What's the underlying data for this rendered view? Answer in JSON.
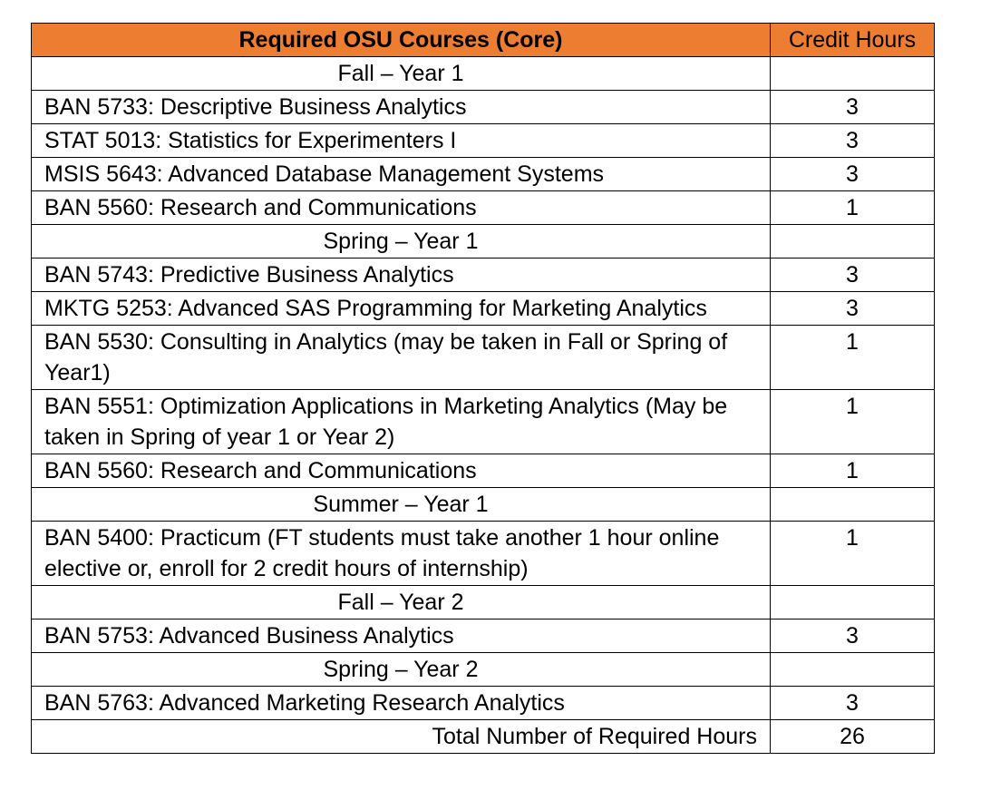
{
  "header": {
    "course_label": "Required OSU Courses (Core)",
    "credit_label": "Credit Hours",
    "header_color": "#ED7D31"
  },
  "rows": [
    {
      "type": "section",
      "label": "Fall – Year 1"
    },
    {
      "type": "course",
      "name": "BAN 5733: Descriptive Business Analytics",
      "credits": "3"
    },
    {
      "type": "course",
      "name": "STAT 5013: Statistics for Experimenters I",
      "credits": "3"
    },
    {
      "type": "course",
      "name": "MSIS 5643: Advanced Database Management Systems",
      "credits": "3"
    },
    {
      "type": "course",
      "name": "BAN 5560: Research and Communications",
      "credits": "1"
    },
    {
      "type": "section",
      "label": "Spring – Year 1"
    },
    {
      "type": "course",
      "name": "BAN 5743: Predictive Business Analytics",
      "credits": "3"
    },
    {
      "type": "course",
      "name": "MKTG 5253: Advanced SAS Programming for Marketing Analytics",
      "credits": "3"
    },
    {
      "type": "course",
      "name": "BAN 5530: Consulting in Analytics (may be taken in Fall or Spring of Year1)",
      "credits": "1"
    },
    {
      "type": "course",
      "name": "BAN 5551: Optimization Applications in Marketing Analytics (May be taken in Spring of year 1 or Year 2)",
      "credits": "1"
    },
    {
      "type": "course",
      "name": "BAN 5560: Research and Communications",
      "credits": "1"
    },
    {
      "type": "section",
      "label": "Summer – Year 1"
    },
    {
      "type": "course",
      "name": "BAN 5400: Practicum (FT students must take another 1 hour online elective or, enroll for 2 credit hours of internship)",
      "credits": "1"
    },
    {
      "type": "section",
      "label": "Fall – Year 2"
    },
    {
      "type": "course",
      "name": "BAN 5753: Advanced Business Analytics",
      "credits": "3"
    },
    {
      "type": "section",
      "label": "Spring – Year 2"
    },
    {
      "type": "course",
      "name": "BAN 5763: Advanced Marketing Research Analytics",
      "credits": "3"
    }
  ],
  "total": {
    "label": "Total Number of Required Hours",
    "value": "26"
  }
}
